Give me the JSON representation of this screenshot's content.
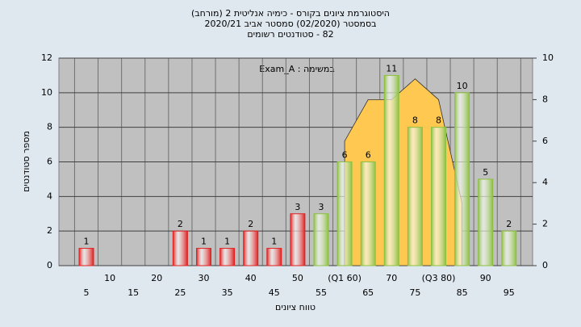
{
  "chart_data": {
    "type": "bar",
    "title": [
      "היסטוגרמת ציונים בקורס - כימיה אנליטית 2 (מורחב)",
      "בסמסטר (02/2020) סמסטר אביב 2020/21",
      "82 - סטודנטים רשומים"
    ],
    "annotation": "במשימה : Exam_A",
    "x_label": "טווח ציונים",
    "y_label": "מספר סטודנטים",
    "categories": [
      "5",
      "10",
      "15",
      "20",
      "25",
      "30",
      "35",
      "40",
      "45",
      "50",
      "55",
      "(Q1 60)",
      "65",
      "70",
      "75",
      "(Q3 80)",
      "85",
      "90",
      "95"
    ],
    "values": [
      1,
      0,
      0,
      0,
      2,
      1,
      1,
      2,
      1,
      3,
      3,
      6,
      6,
      11,
      8,
      8,
      10,
      5,
      2
    ],
    "colors": [
      "#e02020",
      "#e02020",
      "#e02020",
      "#e02020",
      "#e02020",
      "#e02020",
      "#e02020",
      "#e02020",
      "#e02020",
      "#e02020",
      "#8cc040",
      "#8cc040",
      "#8cc040",
      "#8cc040",
      "#8cc040",
      "#8cc040",
      "#8cc040",
      "#8cc040",
      "#8cc040"
    ],
    "area": {
      "axis": "y2",
      "color": "#ffc850",
      "values": [
        null,
        null,
        null,
        null,
        null,
        null,
        null,
        null,
        null,
        null,
        null,
        6,
        8,
        8,
        9,
        8,
        3,
        null,
        null
      ]
    },
    "ylim": [
      0,
      12
    ],
    "yticks": [
      0,
      2,
      4,
      6,
      8,
      10,
      12
    ],
    "y2lim": [
      0,
      10
    ],
    "y2ticks": [
      0,
      2,
      4,
      6,
      8,
      10
    ],
    "grid": true
  }
}
